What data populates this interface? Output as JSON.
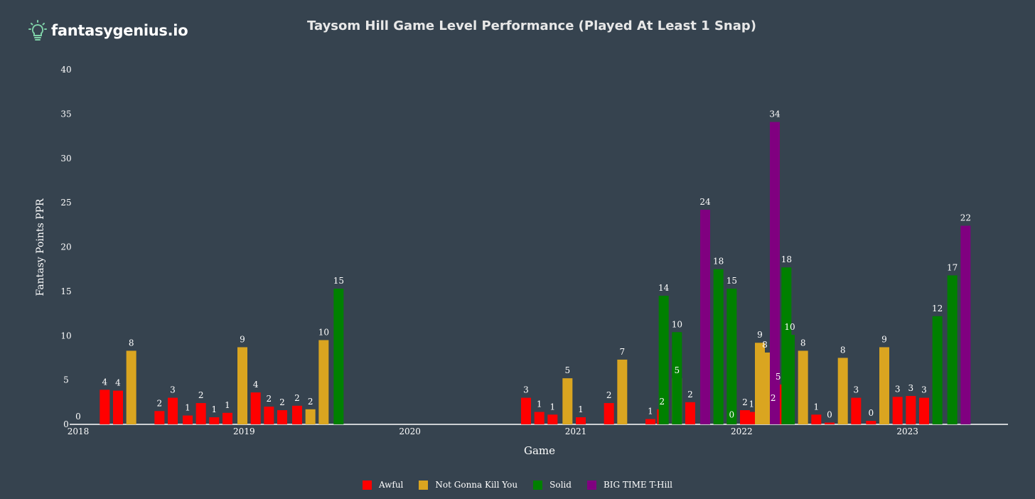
{
  "brand": {
    "name": "fantasygenius.io",
    "logo_icon": "lightbulb-icon"
  },
  "colors": {
    "background": "#36434f",
    "Awful": "#ff0000",
    "Not Gonna Kill You": "#daa520",
    "Solid": "#008000",
    "BIG TIME T-Hill": "#800080"
  },
  "chart_data": {
    "type": "bar",
    "title": "Taysom Hill Game Level Performance (Played At Least 1 Snap)",
    "xlabel": "Game",
    "ylabel": "Fantasy Points PPR",
    "ylim": [
      0,
      40
    ],
    "yticks": [
      0,
      5,
      10,
      15,
      20,
      25,
      30,
      35,
      40
    ],
    "xlim": [
      2018.0,
      2023.55
    ],
    "xticks": [
      "2018",
      "2019",
      "2020",
      "2021",
      "2022",
      "2023"
    ],
    "grid": false,
    "legend_position": "bottom",
    "series": [
      {
        "name": "Awful",
        "color": "#ff0000",
        "points": [
          {
            "x": 2018.0,
            "y": 0.0,
            "label": "0"
          },
          {
            "x": 2018.16,
            "y": 3.9,
            "label": "4"
          },
          {
            "x": 2018.24,
            "y": 3.8,
            "label": "4"
          },
          {
            "x": 2018.49,
            "y": 1.5,
            "label": "2"
          },
          {
            "x": 2018.57,
            "y": 3.0,
            "label": "3"
          },
          {
            "x": 2018.66,
            "y": 1.0,
            "label": "1"
          },
          {
            "x": 2018.74,
            "y": 2.4,
            "label": "2"
          },
          {
            "x": 2018.82,
            "y": 0.8,
            "label": "1"
          },
          {
            "x": 2018.9,
            "y": 1.3,
            "label": "1"
          },
          {
            "x": 2019.07,
            "y": 3.6,
            "label": "4"
          },
          {
            "x": 2019.15,
            "y": 2.0,
            "label": "2"
          },
          {
            "x": 2019.23,
            "y": 1.6,
            "label": "2"
          },
          {
            "x": 2019.32,
            "y": 2.1,
            "label": "2"
          },
          {
            "x": 2020.7,
            "y": 3.0,
            "label": "3"
          },
          {
            "x": 2020.78,
            "y": 1.4,
            "label": "1"
          },
          {
            "x": 2020.86,
            "y": 1.1,
            "label": "1"
          },
          {
            "x": 2021.03,
            "y": 0.8,
            "label": "1"
          },
          {
            "x": 2021.2,
            "y": 2.4,
            "label": "2"
          },
          {
            "x": 2021.45,
            "y": 0.6,
            "label": "1"
          },
          {
            "x": 2021.69,
            "y": 2.5,
            "label": "2"
          },
          {
            "x": 2021.94,
            "y": 0.2,
            "label": "0"
          },
          {
            "x": 2022.02,
            "y": 1.6,
            "label": "2"
          },
          {
            "x": 2022.19,
            "y": 2.1,
            "label": "2"
          },
          {
            "x": 2021.52,
            "y": 1.7,
            "label": "2"
          },
          {
            "x": 2022.06,
            "y": 1.4,
            "label": "1"
          },
          {
            "x": 2022.22,
            "y": 4.5,
            "label": "5"
          },
          {
            "x": 2022.45,
            "y": 1.1,
            "label": "1"
          },
          {
            "x": 2022.53,
            "y": 0.2,
            "label": "0"
          },
          {
            "x": 2022.69,
            "y": 3.0,
            "label": "3"
          },
          {
            "x": 2022.78,
            "y": 0.4,
            "label": "0"
          },
          {
            "x": 2022.94,
            "y": 3.1,
            "label": "3"
          },
          {
            "x": 2023.02,
            "y": 3.2,
            "label": "3"
          },
          {
            "x": 2023.1,
            "y": 3.0,
            "label": "3"
          }
        ]
      },
      {
        "name": "Not Gonna Kill You",
        "color": "#daa520",
        "points": [
          {
            "x": 2018.32,
            "y": 8.3,
            "label": "8"
          },
          {
            "x": 2018.99,
            "y": 8.7,
            "label": "9"
          },
          {
            "x": 2019.4,
            "y": 1.7,
            "label": "2"
          },
          {
            "x": 2019.48,
            "y": 9.5,
            "label": "10"
          },
          {
            "x": 2020.95,
            "y": 5.2,
            "label": "5"
          },
          {
            "x": 2021.28,
            "y": 7.3,
            "label": "7"
          },
          {
            "x": 2022.11,
            "y": 9.2,
            "label": "9"
          },
          {
            "x": 2021.61,
            "y": 5.2,
            "label": "5"
          },
          {
            "x": 2022.14,
            "y": 8.1,
            "label": "8"
          },
          {
            "x": 2022.37,
            "y": 8.3,
            "label": "8"
          },
          {
            "x": 2022.61,
            "y": 7.5,
            "label": "8"
          },
          {
            "x": 2022.86,
            "y": 8.7,
            "label": "9"
          }
        ]
      },
      {
        "name": "Solid",
        "color": "#008000",
        "points": [
          {
            "x": 2019.57,
            "y": 15.3,
            "label": "15"
          },
          {
            "x": 2021.53,
            "y": 14.5,
            "label": "14"
          },
          {
            "x": 2021.61,
            "y": 10.4,
            "label": "10"
          },
          {
            "x": 2021.86,
            "y": 17.5,
            "label": "18"
          },
          {
            "x": 2022.27,
            "y": 17.7,
            "label": "18"
          },
          {
            "x": 2021.94,
            "y": 15.3,
            "label": "15"
          },
          {
            "x": 2022.29,
            "y": 10.1,
            "label": "10"
          },
          {
            "x": 2023.18,
            "y": 12.2,
            "label": "12"
          },
          {
            "x": 2023.27,
            "y": 16.8,
            "label": "17"
          }
        ]
      },
      {
        "name": "BIG TIME T-Hill",
        "color": "#800080",
        "points": [
          {
            "x": 2021.78,
            "y": 24.2,
            "label": "24"
          },
          {
            "x": 2022.2,
            "y": 34.1,
            "label": "34"
          },
          {
            "x": 2023.35,
            "y": 22.4,
            "label": "22"
          }
        ]
      }
    ]
  }
}
